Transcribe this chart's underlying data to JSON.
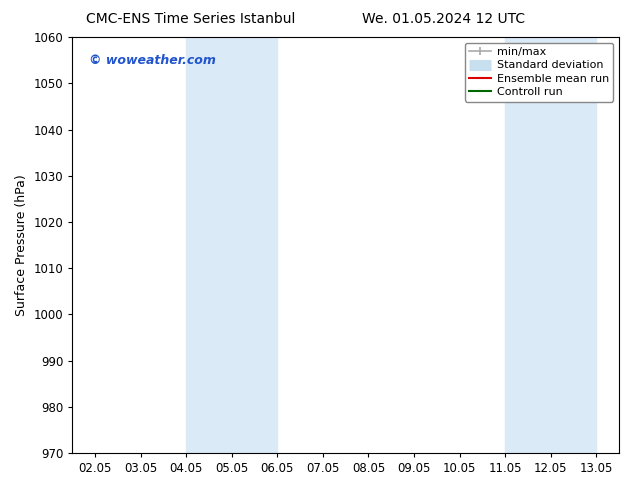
{
  "title_left": "CMC-ENS Time Series Istanbul",
  "title_right": "We. 01.05.2024 12 UTC",
  "ylabel": "Surface Pressure (hPa)",
  "ylim": [
    970,
    1060
  ],
  "yticks": [
    970,
    980,
    990,
    1000,
    1010,
    1020,
    1030,
    1040,
    1050,
    1060
  ],
  "xtick_labels": [
    "02.05",
    "03.05",
    "04.05",
    "05.05",
    "06.05",
    "07.05",
    "08.05",
    "09.05",
    "10.05",
    "11.05",
    "12.05",
    "13.05"
  ],
  "xtick_positions": [
    0,
    1,
    2,
    3,
    4,
    5,
    6,
    7,
    8,
    9,
    10,
    11
  ],
  "shaded_bands": [
    {
      "x_start": 2,
      "x_end": 3,
      "color": "#daeaf7"
    },
    {
      "x_start": 3,
      "x_end": 4,
      "color": "#daeaf7"
    },
    {
      "x_start": 9,
      "x_end": 10,
      "color": "#daeaf7"
    },
    {
      "x_start": 10,
      "x_end": 11,
      "color": "#daeaf7"
    }
  ],
  "watermark_text": "© woweather.com",
  "watermark_color": "#2255cc",
  "legend_entries": [
    {
      "label": "min/max",
      "color": "#aaaaaa",
      "linestyle": "-",
      "linewidth": 1.2,
      "type": "errbar"
    },
    {
      "label": "Standard deviation",
      "color": "#c8dff0",
      "linestyle": "-",
      "linewidth": 8,
      "type": "thick"
    },
    {
      "label": "Ensemble mean run",
      "color": "#dd0000",
      "linestyle": "-",
      "linewidth": 1.5,
      "type": "line"
    },
    {
      "label": "Controll run",
      "color": "#006600",
      "linestyle": "-",
      "linewidth": 1.5,
      "type": "line"
    }
  ],
  "background_color": "#ffffff",
  "title_fontsize": 10,
  "axis_fontsize": 9,
  "tick_fontsize": 8.5,
  "legend_fontsize": 8
}
